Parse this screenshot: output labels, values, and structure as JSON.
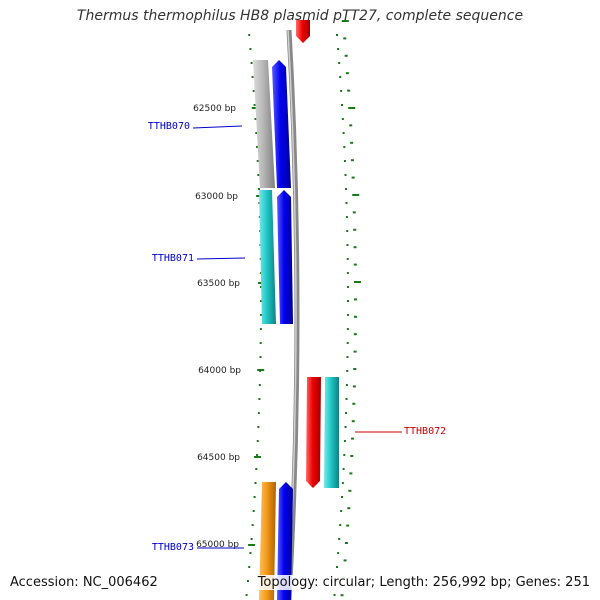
{
  "title": "Thermus thermophilus HB8 plasmid pTT27, complete sequence",
  "ruler_labels": [
    {
      "text": "62500 bp",
      "pos": 62500
    },
    {
      "text": "63000 bp",
      "pos": 63000
    },
    {
      "text": "63500 bp",
      "pos": 63500
    },
    {
      "text": "64000 bp",
      "pos": 64000
    },
    {
      "text": "64500 bp",
      "pos": 64500
    },
    {
      "text": "65000 bp",
      "pos": 65000
    }
  ],
  "genes": [
    {
      "id": "TTHB070",
      "label_color": "#0000cc",
      "start": 62200,
      "end": 62950,
      "strand": "+"
    },
    {
      "id": "TTHB071",
      "label_color": "#0000cc",
      "start": 62950,
      "end": 63720,
      "strand": "+"
    },
    {
      "id": "TTHB072",
      "label_color": "#cc0000",
      "start": 64030,
      "end": 64660,
      "strand": "-"
    },
    {
      "id": "TTHB073",
      "label_color": "#0000cc",
      "start": 64650,
      "end": 65350,
      "strand": "+"
    }
  ],
  "colors": {
    "plus_strand": "#0000ee",
    "minus_strand": "#ee0000",
    "ruler_tick": "#1a7a1a",
    "backbone": "#888888",
    "cog_grey": "#b8b8b8",
    "cog_cyan": "#20c8c8",
    "cog_orange": "#f39a1a"
  },
  "footer": {
    "accession": "Accession: NC_006462",
    "topology": "Topology: circular",
    "length": "Length: 256,992 bp",
    "genes": "Genes: 251"
  }
}
